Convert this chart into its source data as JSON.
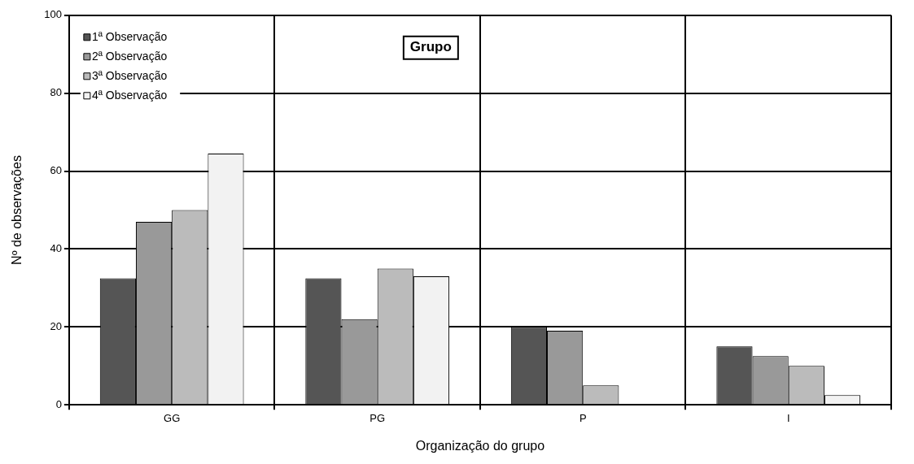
{
  "chart_data": {
    "type": "bar",
    "xlabel": "Organização do grupo",
    "ylabel": "Nº de observações",
    "categories": [
      "GG",
      "PG",
      "P",
      "I"
    ],
    "series": [
      {
        "name": "1ª Observação",
        "color": "#555555",
        "values": [
          32.5,
          32.5,
          20,
          15
        ]
      },
      {
        "name": "2ª Observação",
        "color": "#999999",
        "values": [
          47,
          22,
          19,
          12.5
        ]
      },
      {
        "name": "3ª Observação",
        "color": "#bbbbbb",
        "values": [
          50,
          35,
          5,
          10
        ]
      },
      {
        "name": "4ª Observação",
        "color": "#f2f2f2",
        "values": [
          64.5,
          33,
          0,
          2.5
        ]
      }
    ],
    "ylim": [
      0,
      100
    ],
    "yticks": [
      0,
      20,
      40,
      60,
      80,
      100
    ],
    "grid": true,
    "legend": "top left",
    "annotations": [
      "Grupo"
    ]
  }
}
